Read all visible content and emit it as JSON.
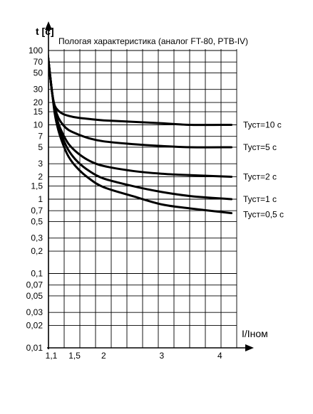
{
  "chart_data": {
    "type": "line",
    "title": "Пологая характеристика (аналог FT-80, PTB-IV)",
    "ylabel": "t [c]",
    "xlabel": "I/Iном",
    "x_scale": "linear",
    "y_scale": "log",
    "xlim": [
      1.0,
      4.15
    ],
    "ylim": [
      0.01,
      100
    ],
    "grid": true,
    "x_ticks": [
      "1,1",
      "1,5",
      "2",
      "3",
      "4"
    ],
    "y_ticks": [
      "100",
      "70",
      "50",
      "30",
      "20",
      "15",
      "10",
      "7",
      "5",
      "3",
      "2",
      "1,5",
      "1",
      "0,7",
      "0,5",
      "0,3",
      "0,2",
      "0,1",
      "0,07",
      "0,05",
      "0,03",
      "0,02",
      "0,01"
    ],
    "series": [
      {
        "name": "Туст=10 с",
        "x": [
          1.03,
          1.05,
          1.08,
          1.12,
          1.16,
          1.22,
          1.3,
          1.4,
          1.55,
          1.75,
          2.0,
          2.5,
          3.0,
          3.5,
          4.2
        ],
        "y": [
          100,
          75,
          45,
          25,
          18,
          15.5,
          14,
          13.2,
          12.5,
          12,
          11.5,
          11,
          10.5,
          10,
          10
        ]
      },
      {
        "name": "Туст=5 с",
        "x": [
          1.03,
          1.05,
          1.08,
          1.12,
          1.16,
          1.22,
          1.3,
          1.4,
          1.55,
          1.75,
          2.0,
          2.5,
          3.0,
          3.5,
          4.2
        ],
        "y": [
          100,
          75,
          45,
          25,
          17,
          12.5,
          10,
          8.5,
          7.5,
          6.6,
          6.0,
          5.5,
          5.2,
          5.0,
          5.0
        ]
      },
      {
        "name": "Туст=2 с",
        "x": [
          1.03,
          1.05,
          1.08,
          1.12,
          1.16,
          1.22,
          1.3,
          1.4,
          1.55,
          1.75,
          2.0,
          2.5,
          3.0,
          3.5,
          4.2
        ],
        "y": [
          100,
          75,
          45,
          25,
          16,
          10.5,
          7.5,
          5.5,
          4.2,
          3.3,
          2.8,
          2.4,
          2.2,
          2.1,
          2.0
        ]
      },
      {
        "name": "Туст=1 с",
        "x": [
          1.03,
          1.05,
          1.08,
          1.12,
          1.16,
          1.22,
          1.3,
          1.4,
          1.55,
          1.75,
          2.0,
          2.5,
          3.0,
          3.5,
          4.2
        ],
        "y": [
          100,
          75,
          45,
          25,
          15,
          9.5,
          6.5,
          4.5,
          3.2,
          2.4,
          1.9,
          1.5,
          1.25,
          1.1,
          1.0
        ]
      },
      {
        "name": "Туст=0,5 с",
        "x": [
          1.03,
          1.05,
          1.08,
          1.12,
          1.16,
          1.22,
          1.3,
          1.4,
          1.55,
          1.75,
          2.0,
          2.5,
          3.0,
          3.5,
          4.2
        ],
        "y": [
          100,
          75,
          45,
          25,
          14,
          8.5,
          5.5,
          3.7,
          2.6,
          1.9,
          1.45,
          1.1,
          0.85,
          0.75,
          0.65
        ]
      }
    ]
  }
}
